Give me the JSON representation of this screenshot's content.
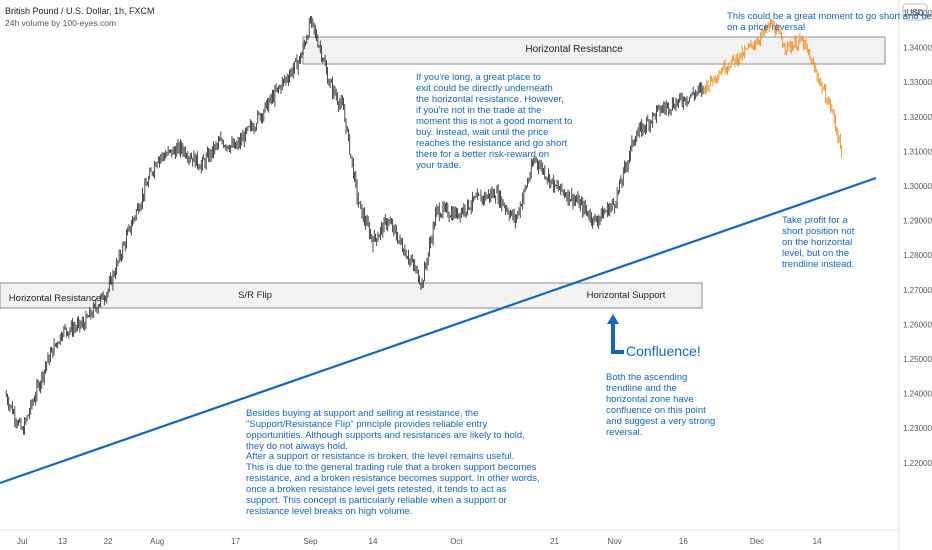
{
  "header": {
    "symbol_title": "British Pound / U.S. Dollar, 1h, FXCM",
    "volume_label": "24h volume by 100-eyes.com"
  },
  "price_axis": {
    "currency": "USD",
    "ticks": [
      "1.35000",
      "1.34000",
      "1.33000",
      "1.32000",
      "1.31000",
      "1.30000",
      "1.29000",
      "1.28000",
      "1.27000",
      "1.26000",
      "1.25000",
      "1.24000",
      "1.23000",
      "1.22000"
    ]
  },
  "time_axis": {
    "ticks": [
      "Jul",
      "13",
      "22",
      "Aug",
      "17",
      "Sep",
      "14",
      "Oct",
      "21",
      "Nov",
      "16",
      "Dec",
      "14"
    ]
  },
  "zones": {
    "top_resistance": "Horizontal Resistance",
    "left_resistance": "Horizontal Resistance",
    "sr_flip": "S/R Flip",
    "support": "Horizontal Support"
  },
  "annotations": {
    "top_right": "This could be a great moment to go short and bet on a price reversal",
    "long_exit": "If you're long, a great place to exit could be directly underneath the horizontal resistance. However, if you're not in the trade at the moment this is not a good moment to buy. Instead, wait until the price reaches the resistance and go short there for a better risk-reward on your trade.",
    "take_profit": "Take profit for a short position not on the horizontal level, but on the trendline instead.",
    "confluence_title": "Confluence!",
    "confluence_body": "Both the ascending trendline and the horizontal zone have confluence on this point and suggest a very strong reversal.",
    "flip_para1": "Besides buying at support and selling at resistance, the \"Support/Resistance Flip\" principle provides reliable entry opportunities. Although supports and resistances are likely to hold, they do not always hold.",
    "flip_para2": "After a support or resistance is broken, the level remains useful. This is due to the general trading rule that a broken support becomes resistance, and a broken resistance becomes support. In other words, once a broken resistance level gets retested, it tends to act as support. This concept is particularly reliable when a support or resistance level breaks on high volume."
  },
  "colors": {
    "candles": "#1e1e1e",
    "projection": "#f28b22",
    "trendline": "#1565c0",
    "annotation_text": "#1565c0",
    "zone_fill": "#f2f2f2",
    "zone_border": "#8c8c8c"
  },
  "chart_data": {
    "type": "line",
    "title": "British Pound / U.S. Dollar, 1h, FXCM",
    "xlabel": "",
    "ylabel": "",
    "ylim": [
      1.2145,
      1.3545
    ],
    "x": [
      "Jul 1",
      "Jul 5",
      "Jul 10",
      "Jul 13",
      "Jul 17",
      "Jul 22",
      "Jul 27",
      "Aug 1",
      "Aug 6",
      "Aug 10",
      "Aug 14",
      "Aug 17",
      "Aug 21",
      "Aug 26",
      "Aug 30",
      "Sep 1",
      "Sep 3",
      "Sep 5",
      "Sep 8",
      "Sep 11",
      "Sep 14",
      "Sep 17",
      "Sep 21",
      "Sep 24",
      "Sep 27",
      "Oct 1",
      "Oct 5",
      "Oct 9",
      "Oct 13",
      "Oct 17",
      "Oct 21",
      "Oct 25",
      "Oct 29",
      "Nov 2",
      "Nov 6",
      "Nov 11",
      "Nov 16",
      "Nov 20"
    ],
    "series": [
      {
        "values": [
          1.24,
          1.229,
          1.25,
          1.258,
          1.26,
          1.27,
          1.29,
          1.308,
          1.311,
          1.306,
          1.313,
          1.311,
          1.319,
          1.329,
          1.337,
          1.3475,
          1.34,
          1.33,
          1.322,
          1.295,
          1.284,
          1.29,
          1.28,
          1.272,
          1.293,
          1.292,
          1.296,
          1.298,
          1.29,
          1.308,
          1.3,
          1.296,
          1.29,
          1.295,
          1.314,
          1.322,
          1.325,
          1.328
        ]
      },
      {
        "x": [
          "Nov 20",
          "Nov 24",
          "Nov 28",
          "Dec 1",
          "Dec 4",
          "Dec 7",
          "Dec 10",
          "Dec 13",
          "Dec 16",
          "Dec 18"
        ],
        "values": [
          1.328,
          1.334,
          1.338,
          1.342,
          1.347,
          1.34,
          1.342,
          1.332,
          1.322,
          1.31
        ]
      }
    ],
    "horizontal_zones": [
      {
        "label": "Horizontal Resistance",
        "range": [
          1.346,
          1.3525
        ]
      },
      {
        "label": "Horizontal Resistance",
        "range": [
          1.2775,
          1.282
        ]
      },
      {
        "label": "S/R Flip",
        "range": [
          1.2775,
          1.282
        ]
      },
      {
        "label": "Horizontal Support",
        "range": [
          1.2765,
          1.283
        ]
      }
    ],
    "trendline": {
      "x": [
        "Jun 30",
        "Dec 23"
      ],
      "values": [
        1.2254,
        1.3115
      ]
    }
  }
}
